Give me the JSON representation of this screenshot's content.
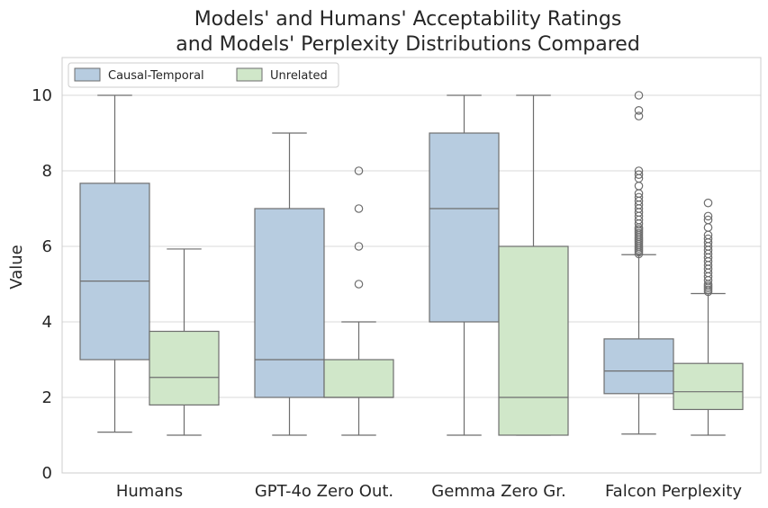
{
  "chart_data": {
    "type": "box",
    "title_line1": "Models' and Humans' Acceptability Ratings",
    "title_line2": "and Models' Perplexity Distributions Compared",
    "xlabel": "",
    "ylabel": "Value",
    "ylim": [
      0,
      11
    ],
    "yticks": [
      0,
      2,
      4,
      6,
      8,
      10
    ],
    "grid": "horizontal",
    "legend_position": "top-left",
    "categories": [
      "Humans",
      "GPT-4o Zero Out.",
      "Gemma Zero Gr.",
      "Falcon Perplexity"
    ],
    "series": [
      {
        "name": "Causal-Temporal",
        "color": "#b7cce0",
        "boxes": [
          {
            "whisker_low": 1.08,
            "q1": 3.0,
            "median": 5.08,
            "q3": 7.67,
            "whisker_high": 10.0,
            "outliers": []
          },
          {
            "whisker_low": 1.0,
            "q1": 2.0,
            "median": 3.0,
            "q3": 7.0,
            "whisker_high": 9.0,
            "outliers": []
          },
          {
            "whisker_low": 1.0,
            "q1": 4.0,
            "median": 7.0,
            "q3": 9.0,
            "whisker_high": 10.0,
            "outliers": []
          },
          {
            "whisker_low": 1.03,
            "q1": 2.1,
            "median": 2.7,
            "q3": 3.55,
            "whisker_high": 5.78,
            "outliers": [
              5.8,
              5.85,
              5.9,
              5.95,
              6.0,
              6.05,
              6.1,
              6.15,
              6.2,
              6.25,
              6.3,
              6.35,
              6.4,
              6.45,
              6.5,
              6.6,
              6.7,
              6.8,
              6.9,
              7.0,
              7.1,
              7.2,
              7.3,
              7.4,
              7.6,
              7.8,
              7.9,
              8.0,
              9.45,
              9.6,
              10.0
            ]
          }
        ]
      },
      {
        "name": "Unrelated",
        "color": "#d0e7c9",
        "boxes": [
          {
            "whisker_low": 1.0,
            "q1": 1.8,
            "median": 2.53,
            "q3": 3.75,
            "whisker_high": 5.93,
            "outliers": []
          },
          {
            "whisker_low": 1.0,
            "q1": 2.0,
            "median": 2.0,
            "q3": 3.0,
            "whisker_high": 4.0,
            "outliers": [
              5.0,
              6.0,
              7.0,
              8.0
            ]
          },
          {
            "whisker_low": 1.0,
            "q1": 1.0,
            "median": 2.0,
            "q3": 6.0,
            "whisker_high": 10.0,
            "outliers": []
          },
          {
            "whisker_low": 1.0,
            "q1": 1.68,
            "median": 2.15,
            "q3": 2.9,
            "whisker_high": 4.75,
            "outliers": [
              4.8,
              4.85,
              4.9,
              4.95,
              5.0,
              5.1,
              5.2,
              5.3,
              5.4,
              5.5,
              5.6,
              5.7,
              5.8,
              5.9,
              6.0,
              6.1,
              6.2,
              6.3,
              6.5,
              6.7,
              6.8,
              7.15
            ]
          }
        ]
      }
    ]
  }
}
